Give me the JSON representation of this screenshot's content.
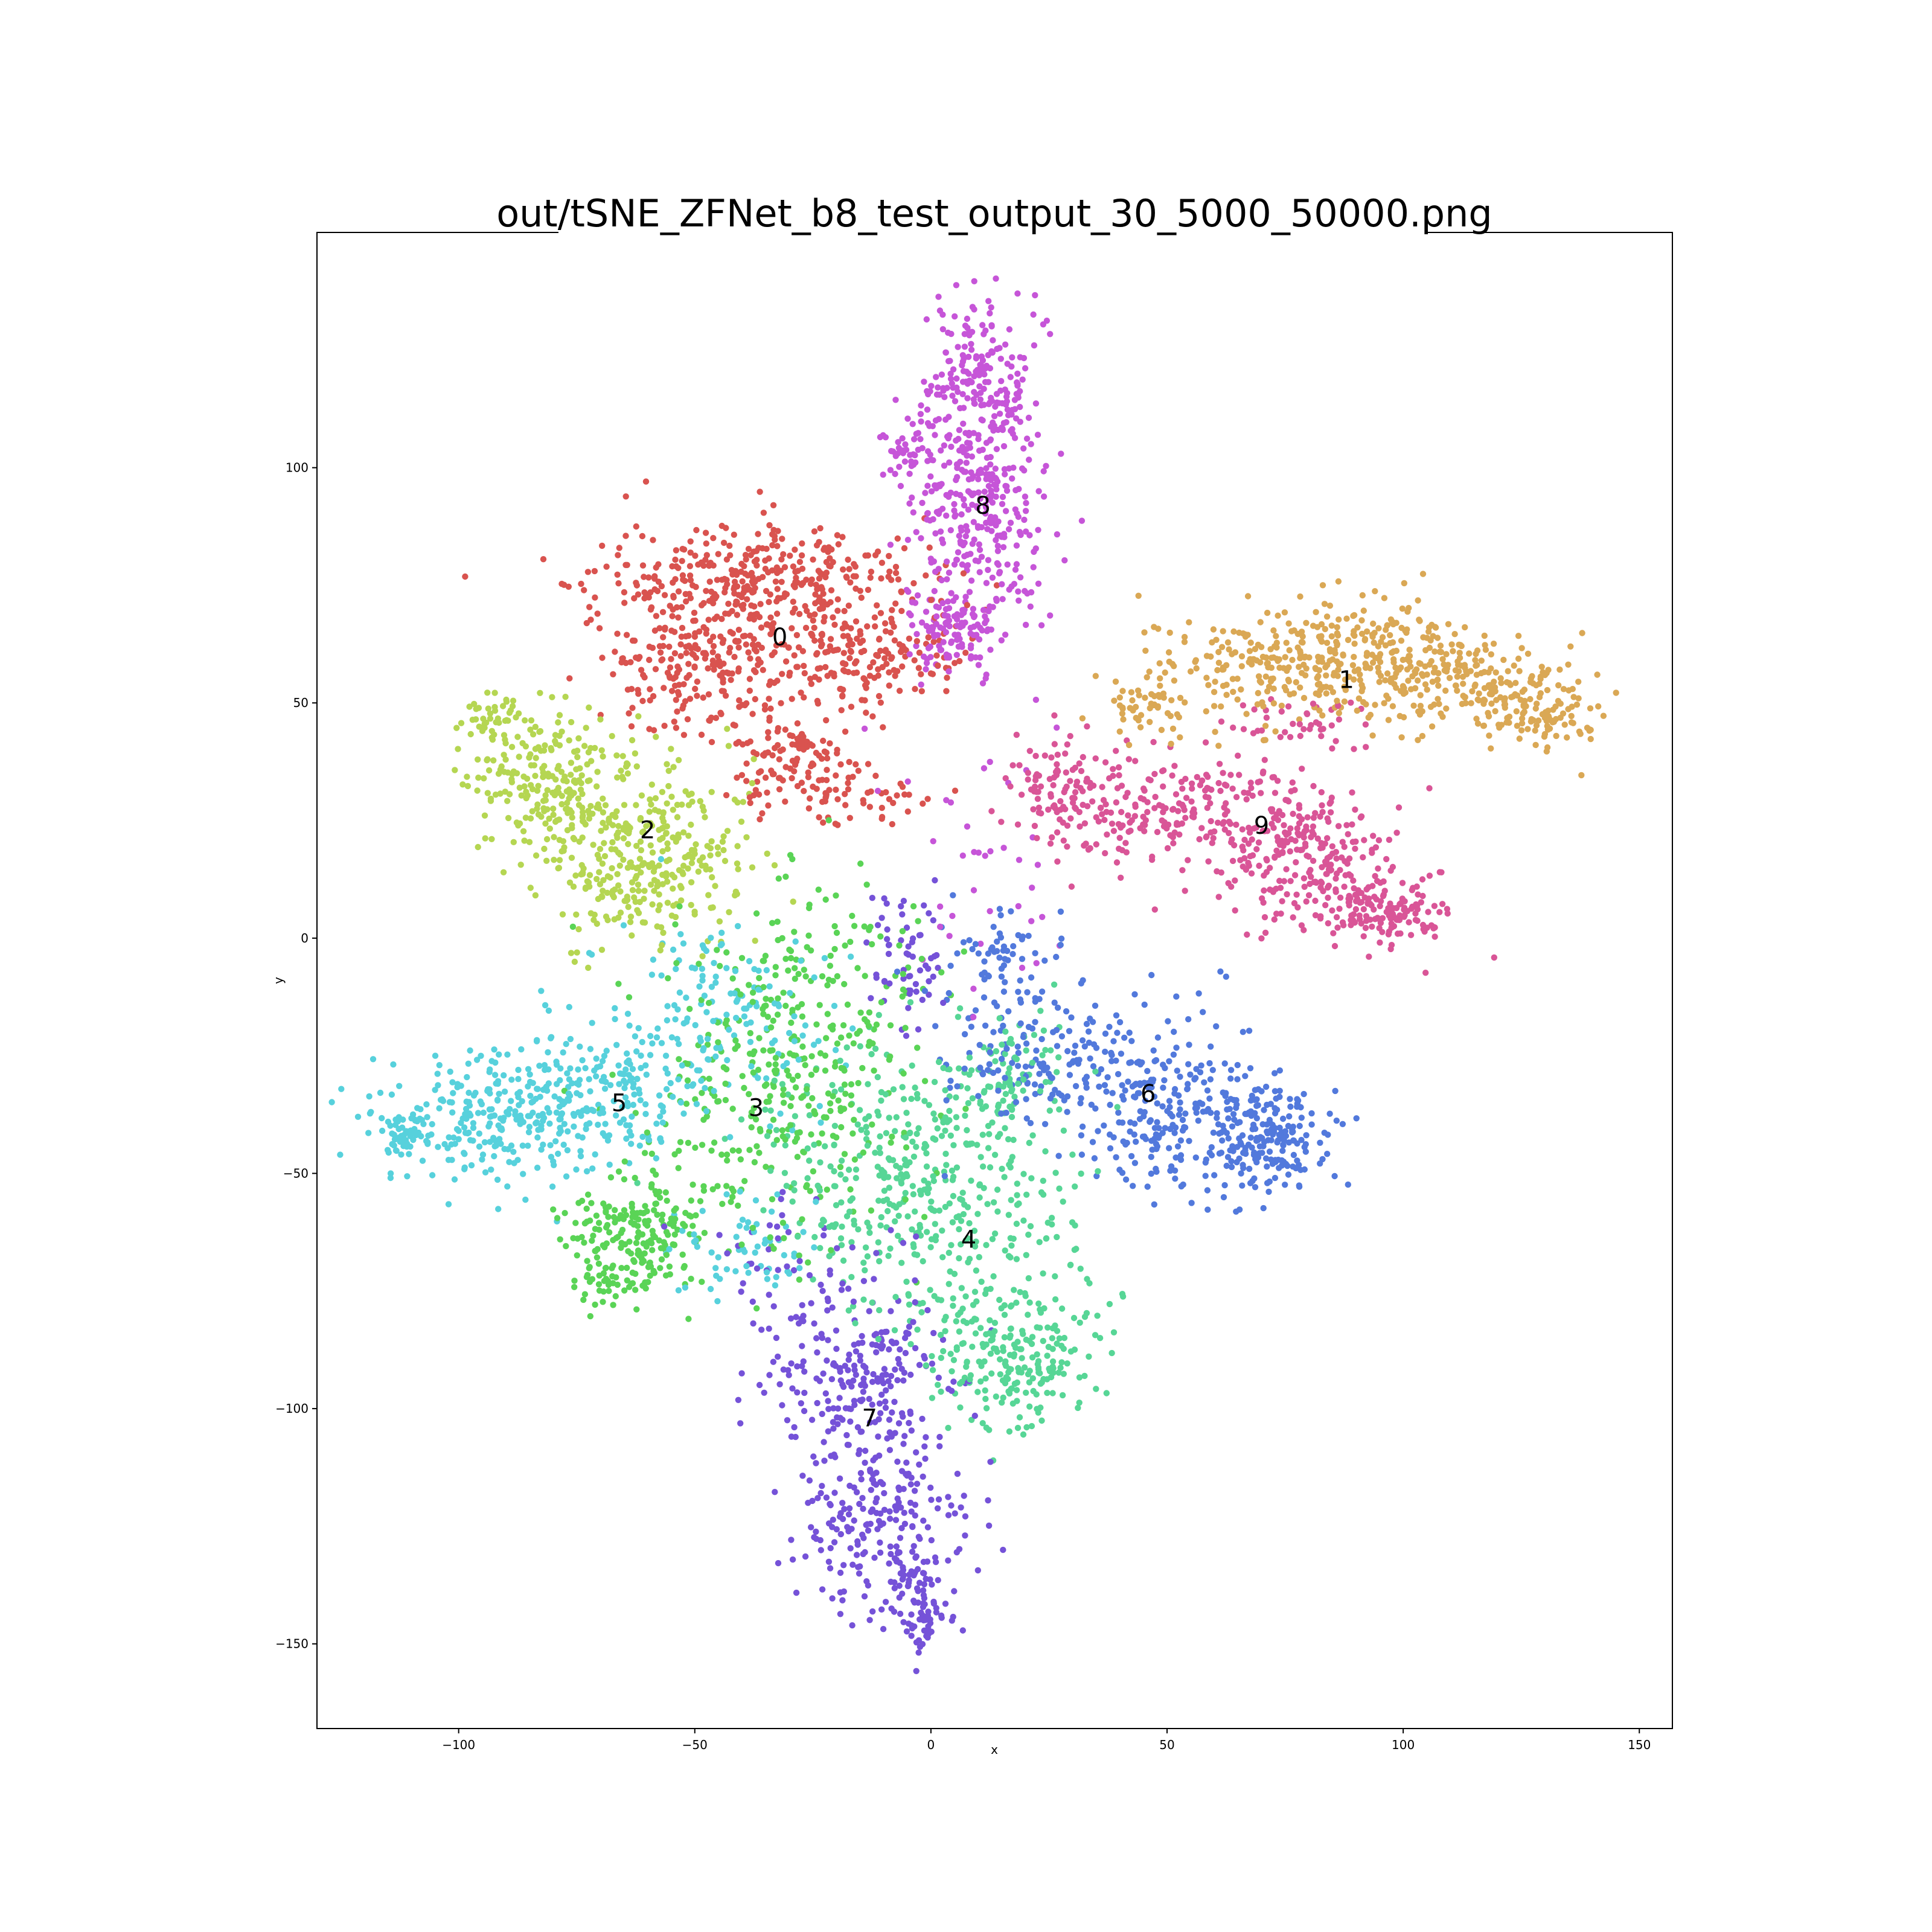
{
  "chart_data": {
    "type": "scatter",
    "title": "out/tSNE_ZFNet_b8_test_output_30_5000_50000.png",
    "xlabel": "x",
    "ylabel": "y",
    "xlim": [
      -130,
      157
    ],
    "ylim": [
      -168,
      150
    ],
    "xticks": [
      -100,
      -50,
      0,
      50,
      100,
      150
    ],
    "yticks": [
      -150,
      -100,
      -50,
      0,
      50,
      100
    ],
    "xtick_labels": [
      "−100",
      "−50",
      "0",
      "50",
      "100",
      "150"
    ],
    "ytick_labels": [
      "−150",
      "−100",
      "−50",
      "0",
      "50",
      "100"
    ],
    "grid": false,
    "legend": "none",
    "clusters": [
      {
        "label": "0",
        "color": "#d9534f",
        "label_pos": [
          -32,
          64
        ],
        "blobs": [
          {
            "center": [
              -40,
              77
            ],
            "spread": [
              16,
              6
            ],
            "n": 300
          },
          {
            "center": [
              -20,
              62
            ],
            "spread": [
              14,
              8
            ],
            "n": 280
          },
          {
            "center": [
              -50,
              58
            ],
            "spread": [
              10,
              7
            ],
            "n": 180
          },
          {
            "center": [
              -30,
              38
            ],
            "spread": [
              7,
              5
            ],
            "n": 110
          },
          {
            "center": [
              -15,
              30
            ],
            "spread": [
              8,
              5
            ],
            "n": 50
          }
        ]
      },
      {
        "label": "1",
        "color": "#daa855",
        "label_pos": [
          88,
          55
        ],
        "blobs": [
          {
            "center": [
              72,
              58
            ],
            "spread": [
              14,
              6
            ],
            "n": 180
          },
          {
            "center": [
              92,
              60
            ],
            "spread": [
              12,
              6
            ],
            "n": 200
          },
          {
            "center": [
              112,
              55
            ],
            "spread": [
              10,
              5
            ],
            "n": 160
          },
          {
            "center": [
              130,
              47
            ],
            "spread": [
              7,
              4
            ],
            "n": 110
          },
          {
            "center": [
              45,
              50
            ],
            "spread": [
              5,
              4
            ],
            "n": 50
          }
        ]
      },
      {
        "label": "2",
        "color": "#b5d652",
        "label_pos": [
          -60,
          23
        ],
        "blobs": [
          {
            "center": [
              -80,
              33
            ],
            "spread": [
              9,
              8
            ],
            "n": 250
          },
          {
            "center": [
              -55,
              20
            ],
            "spread": [
              9,
              9
            ],
            "n": 220
          },
          {
            "center": [
              -68,
              10
            ],
            "spread": [
              8,
              7
            ],
            "n": 90
          },
          {
            "center": [
              -93,
              47
            ],
            "spread": [
              3,
              2
            ],
            "n": 30
          }
        ]
      },
      {
        "label": "3",
        "color": "#5ad456",
        "label_pos": [
          -37,
          -36
        ],
        "blobs": [
          {
            "center": [
              -35,
              -35
            ],
            "spread": [
              15,
              15
            ],
            "n": 280
          },
          {
            "center": [
              -63,
              -63
            ],
            "spread": [
              7,
              7
            ],
            "n": 200
          },
          {
            "center": [
              -25,
              -10
            ],
            "spread": [
              12,
              12
            ],
            "n": 130
          },
          {
            "center": [
              -70,
              -73
            ],
            "spread": [
              3,
              2
            ],
            "n": 25
          }
        ]
      },
      {
        "label": "4",
        "color": "#57d696",
        "label_pos": [
          8,
          -64
        ],
        "blobs": [
          {
            "center": [
              5,
              -62
            ],
            "spread": [
              14,
              13
            ],
            "n": 260
          },
          {
            "center": [
              18,
              -90
            ],
            "spread": [
              9,
              7
            ],
            "n": 200
          },
          {
            "center": [
              -8,
              -45
            ],
            "spread": [
              14,
              12
            ],
            "n": 200
          },
          {
            "center": [
              15,
              -30
            ],
            "spread": [
              8,
              8
            ],
            "n": 90
          }
        ]
      },
      {
        "label": "5",
        "color": "#57d1dc",
        "label_pos": [
          -66,
          -35
        ],
        "blobs": [
          {
            "center": [
              -93,
              -38
            ],
            "spread": [
              12,
              7
            ],
            "n": 260
          },
          {
            "center": [
              -68,
              -33
            ],
            "spread": [
              10,
              8
            ],
            "n": 180
          },
          {
            "center": [
              -112,
              -42
            ],
            "spread": [
              3,
              2
            ],
            "n": 40
          },
          {
            "center": [
              -45,
              -15
            ],
            "spread": [
              12,
              10
            ],
            "n": 140
          },
          {
            "center": [
              -38,
              -65
            ],
            "spread": [
              8,
              6
            ],
            "n": 60
          }
        ]
      },
      {
        "label": "6",
        "color": "#5279dc",
        "label_pos": [
          46,
          -33
        ],
        "blobs": [
          {
            "center": [
              50,
              -35
            ],
            "spread": [
              10,
              10
            ],
            "n": 240
          },
          {
            "center": [
              72,
              -42
            ],
            "spread": [
              6,
              5
            ],
            "n": 190
          },
          {
            "center": [
              22,
              -25
            ],
            "spread": [
              10,
              9
            ],
            "n": 160
          },
          {
            "center": [
              15,
              -5
            ],
            "spread": [
              5,
              5
            ],
            "n": 50
          }
        ]
      },
      {
        "label": "7",
        "color": "#7552d8",
        "label_pos": [
          -13,
          -102
        ],
        "blobs": [
          {
            "center": [
              -15,
              -95
            ],
            "spread": [
              10,
              9
            ],
            "n": 230
          },
          {
            "center": [
              -10,
              -125
            ],
            "spread": [
              9,
              9
            ],
            "n": 220
          },
          {
            "center": [
              -2,
              -143
            ],
            "spread": [
              3,
              5
            ],
            "n": 70
          },
          {
            "center": [
              -5,
              -3
            ],
            "spread": [
              4,
              9
            ],
            "n": 60
          },
          {
            "center": [
              -30,
              -70
            ],
            "spread": [
              10,
              8
            ],
            "n": 50
          }
        ]
      },
      {
        "label": "8",
        "color": "#c655d8",
        "label_pos": [
          11,
          92
        ],
        "blobs": [
          {
            "center": [
              10,
              115
            ],
            "spread": [
              6,
              10
            ],
            "n": 250
          },
          {
            "center": [
              10,
              88
            ],
            "spread": [
              7,
              11
            ],
            "n": 260
          },
          {
            "center": [
              5,
              65
            ],
            "spread": [
              6,
              6
            ],
            "n": 110
          },
          {
            "center": [
              -5,
              103
            ],
            "spread": [
              3,
              3
            ],
            "n": 30
          },
          {
            "center": [
              10,
              15
            ],
            "spread": [
              12,
              12
            ],
            "n": 40
          }
        ]
      },
      {
        "label": "9",
        "color": "#d95597",
        "label_pos": [
          70,
          24
        ],
        "blobs": [
          {
            "center": [
              52,
              27
            ],
            "spread": [
              14,
              6
            ],
            "n": 220
          },
          {
            "center": [
              78,
              18
            ],
            "spread": [
              9,
              7
            ],
            "n": 220
          },
          {
            "center": [
              97,
              5
            ],
            "spread": [
              7,
              4
            ],
            "n": 150
          },
          {
            "center": [
              28,
              33
            ],
            "spread": [
              6,
              6
            ],
            "n": 90
          },
          {
            "center": [
              80,
              45
            ],
            "spread": [
              8,
              3
            ],
            "n": 40
          }
        ]
      }
    ]
  }
}
